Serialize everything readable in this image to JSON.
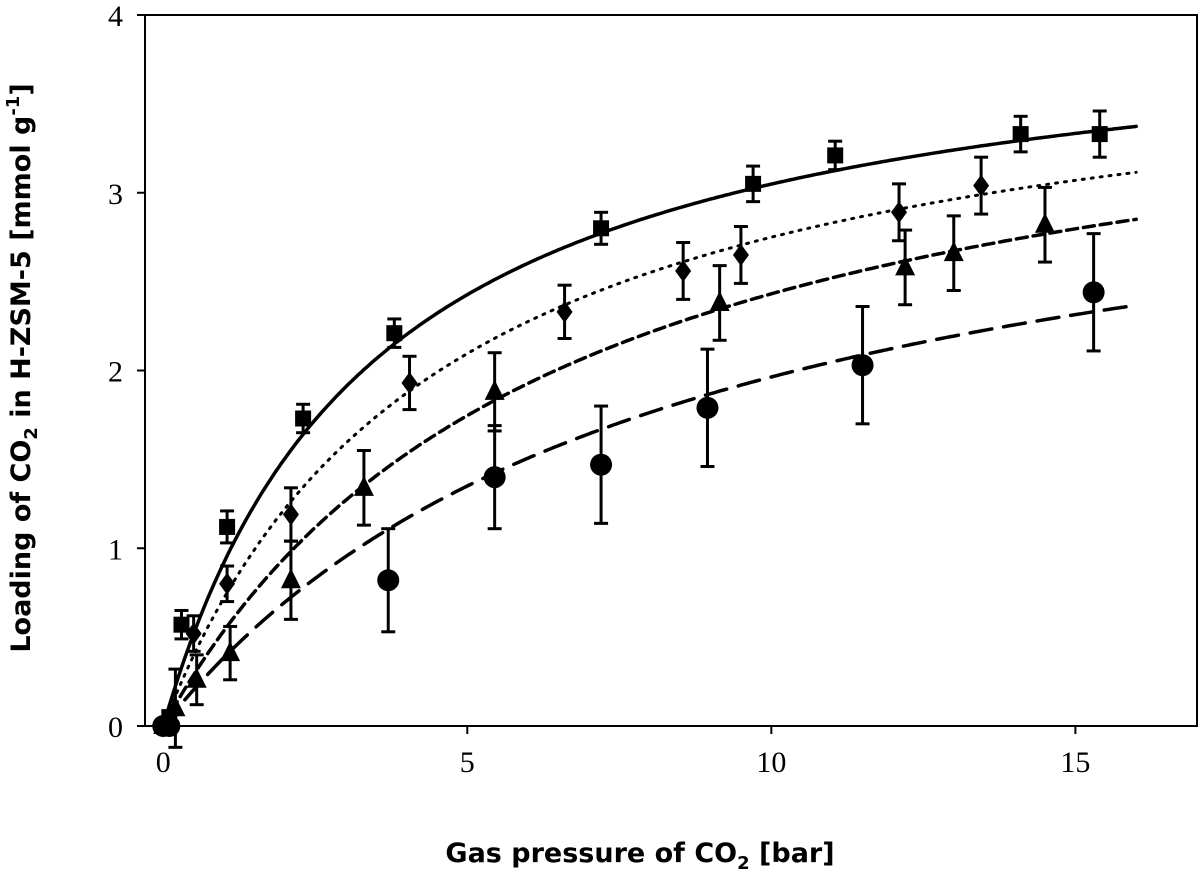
{
  "chart_data": {
    "type": "scatter",
    "xlabel": "Gas pressure of CO",
    "xlabel_sub": "2",
    "xlabel_suffix": " [bar]",
    "ylabel": "Loading of CO",
    "ylabel_sub": "2",
    "ylabel_mid": " in H-ZSM-5 [mmol g",
    "ylabel_sup": "-1",
    "ylabel_end": "]",
    "xlim": [
      -0.3,
      17
    ],
    "ylim": [
      0,
      4
    ],
    "x_ticks": [
      0,
      5,
      10,
      15
    ],
    "y_ticks": [
      0,
      1,
      2,
      3,
      4
    ],
    "x_tick_labels": [
      "0",
      "5",
      "10",
      "15"
    ],
    "y_tick_labels": [
      "0",
      "1",
      "2",
      "3",
      "4"
    ],
    "grid": false,
    "legend": "none",
    "series": [
      {
        "marker": "square",
        "line_style": "solid",
        "fit": {
          "qmax": 4.1,
          "b": 0.29
        },
        "points": [
          {
            "x": 0.0,
            "y": 0.0,
            "err": 0.0
          },
          {
            "x": 0.1,
            "y": 0.05,
            "err": 0.0
          },
          {
            "x": 0.3,
            "y": 0.57,
            "err": 0.08
          },
          {
            "x": 1.05,
            "y": 1.12,
            "err": 0.09
          },
          {
            "x": 2.3,
            "y": 1.73,
            "err": 0.08
          },
          {
            "x": 3.8,
            "y": 2.21,
            "err": 0.08
          },
          {
            "x": 7.2,
            "y": 2.8,
            "err": 0.09
          },
          {
            "x": 9.7,
            "y": 3.05,
            "err": 0.1
          },
          {
            "x": 11.05,
            "y": 3.21,
            "err": 0.08
          },
          {
            "x": 14.1,
            "y": 3.33,
            "err": 0.1
          },
          {
            "x": 15.4,
            "y": 3.33,
            "err": 0.13
          }
        ]
      },
      {
        "marker": "diamond",
        "line_style": "dotted",
        "fit": {
          "qmax": 4.0,
          "b": 0.22
        },
        "points": [
          {
            "x": 0.0,
            "y": 0.0,
            "err": 0.0
          },
          {
            "x": 0.5,
            "y": 0.52,
            "err": 0.1
          },
          {
            "x": 1.05,
            "y": 0.8,
            "err": 0.1
          },
          {
            "x": 2.1,
            "y": 1.19,
            "err": 0.15
          },
          {
            "x": 4.05,
            "y": 1.93,
            "err": 0.15
          },
          {
            "x": 6.6,
            "y": 2.33,
            "err": 0.15
          },
          {
            "x": 8.55,
            "y": 2.56,
            "err": 0.16
          },
          {
            "x": 9.5,
            "y": 2.65,
            "err": 0.16
          },
          {
            "x": 12.1,
            "y": 2.89,
            "err": 0.16
          },
          {
            "x": 13.45,
            "y": 3.04,
            "err": 0.16
          }
        ]
      },
      {
        "marker": "triangle",
        "line_style": "dashed",
        "fit": {
          "qmax": 4.0,
          "b": 0.155
        },
        "points": [
          {
            "x": 0.0,
            "y": 0.0,
            "err": 0.0
          },
          {
            "x": 0.2,
            "y": 0.1,
            "err": 0.22
          },
          {
            "x": 0.55,
            "y": 0.26,
            "err": 0.14
          },
          {
            "x": 1.1,
            "y": 0.41,
            "err": 0.15
          },
          {
            "x": 2.1,
            "y": 0.82,
            "err": 0.22
          },
          {
            "x": 3.3,
            "y": 1.34,
            "err": 0.21
          },
          {
            "x": 5.45,
            "y": 1.88,
            "err": 0.22
          },
          {
            "x": 9.15,
            "y": 2.38,
            "err": 0.21
          },
          {
            "x": 12.2,
            "y": 2.58,
            "err": 0.21
          },
          {
            "x": 13.0,
            "y": 2.66,
            "err": 0.21
          },
          {
            "x": 14.5,
            "y": 2.82,
            "err": 0.21
          }
        ]
      },
      {
        "marker": "circle",
        "line_style": "long-dashed",
        "fit": {
          "qmax": 3.6,
          "b": 0.12
        },
        "points": [
          {
            "x": 0.0,
            "y": 0.0,
            "err": 0.0
          },
          {
            "x": 0.1,
            "y": 0.0,
            "err": 0.0
          },
          {
            "x": 3.7,
            "y": 0.82,
            "err": 0.29
          },
          {
            "x": 5.45,
            "y": 1.4,
            "err": 0.29
          },
          {
            "x": 7.2,
            "y": 1.47,
            "err": 0.33
          },
          {
            "x": 8.95,
            "y": 1.79,
            "err": 0.33
          },
          {
            "x": 11.5,
            "y": 2.03,
            "err": 0.33
          },
          {
            "x": 15.3,
            "y": 2.44,
            "err": 0.33
          }
        ]
      }
    ]
  }
}
